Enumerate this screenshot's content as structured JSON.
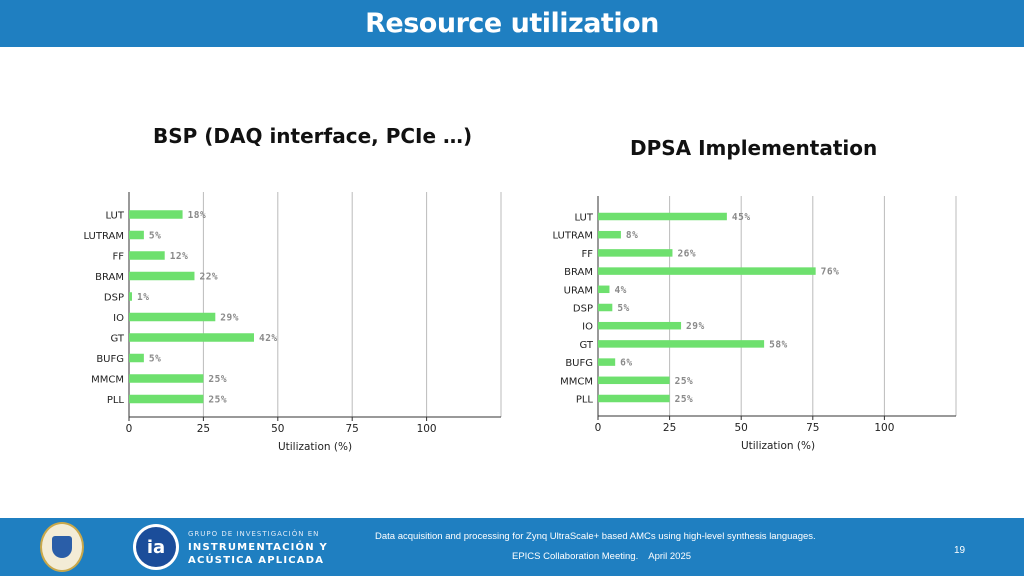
{
  "header": {
    "title": "Resource utilization"
  },
  "colors": {
    "header_bg": "#1f7fc1",
    "bar": "#6ee06e",
    "grid": "#bbbbbb"
  },
  "chart_data": [
    {
      "type": "bar",
      "orientation": "horizontal",
      "title": "BSP (DAQ interface, PCIe …)",
      "categories": [
        "LUT",
        "LUTRAM",
        "FF",
        "BRAM",
        "DSP",
        "IO",
        "GT",
        "BUFG",
        "MMCM",
        "PLL"
      ],
      "values": [
        18,
        5,
        12,
        22,
        1,
        29,
        42,
        5,
        25,
        25
      ],
      "data_labels": [
        "18%",
        "5%",
        "12%",
        "22%",
        "1%",
        "29%",
        "42%",
        "5%",
        "25%",
        "25%"
      ],
      "xlabel": "Utilization (%)",
      "xticks": [
        "0",
        "25",
        "50",
        "75",
        "100"
      ],
      "xlim": [
        0,
        125
      ],
      "grid": true
    },
    {
      "type": "bar",
      "orientation": "horizontal",
      "title": "DPSA Implementation",
      "categories": [
        "LUT",
        "LUTRAM",
        "FF",
        "BRAM",
        "URAM",
        "DSP",
        "IO",
        "GT",
        "BUFG",
        "MMCM",
        "PLL"
      ],
      "values": [
        45,
        8,
        26,
        76,
        4,
        5,
        29,
        58,
        6,
        25,
        25
      ],
      "data_labels": [
        "45%",
        "8%",
        "26%",
        "76%",
        "4%",
        "5%",
        "29%",
        "58%",
        "6%",
        "25%",
        "25%"
      ],
      "xlabel": "Utilization (%)",
      "xticks": [
        "0",
        "25",
        "50",
        "75",
        "100"
      ],
      "xlim": [
        0,
        125
      ],
      "grid": true
    }
  ],
  "footer": {
    "group_small": "GRUPO DE INVESTIGACIÓN EN",
    "group_line1": "INSTRUMENTACIÓN Y",
    "group_line2": "ACÚSTICA APLICADA",
    "logo_text": "ia",
    "line1": "Data acquisition and processing for Zynq UltraScale+ based AMCs using high-level synthesis languages.",
    "line2": "EPICS Collaboration Meeting.    April 2025",
    "page_number": "19"
  }
}
